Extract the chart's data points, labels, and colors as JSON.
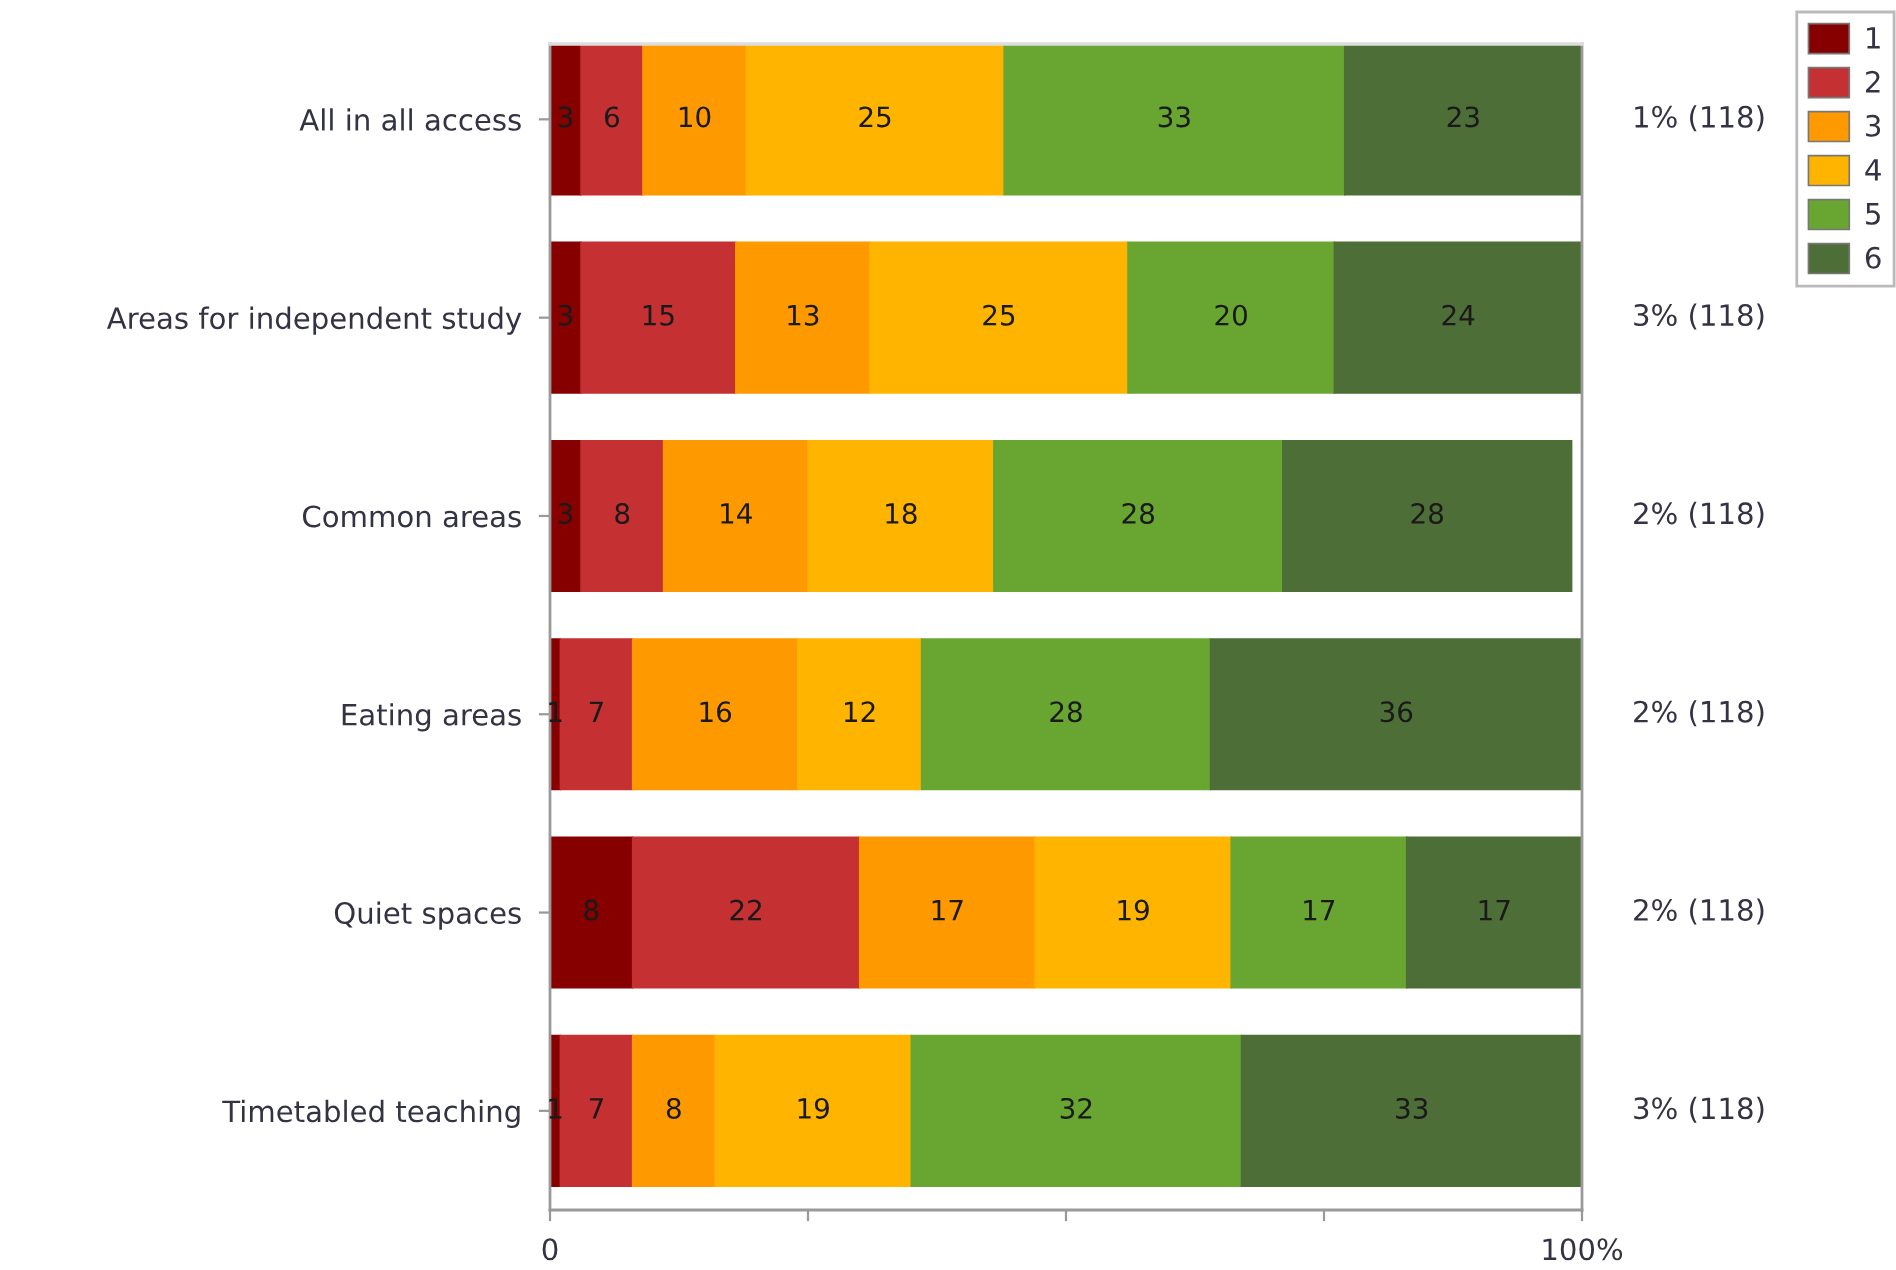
{
  "chart_data": {
    "type": "bar",
    "orientation": "horizontal",
    "stacked": true,
    "categories": [
      "All in all access",
      "Areas for independent study",
      "Common areas",
      "Eating areas",
      "Quiet spaces",
      "Timetabled teaching"
    ],
    "series": [
      {
        "name": "1",
        "color": "#870000",
        "values": [
          3,
          3,
          3,
          1,
          8,
          1
        ]
      },
      {
        "name": "2",
        "color": "#c53033",
        "values": [
          6,
          15,
          8,
          7,
          22,
          7
        ]
      },
      {
        "name": "3",
        "color": "#fe9900",
        "values": [
          10,
          13,
          14,
          16,
          17,
          8
        ]
      },
      {
        "name": "4",
        "color": "#ffb400",
        "values": [
          25,
          25,
          18,
          12,
          19,
          19
        ]
      },
      {
        "name": "5",
        "color": "#69a631",
        "values": [
          33,
          20,
          28,
          28,
          17,
          32
        ]
      },
      {
        "name": "6",
        "color": "#4e6e38",
        "values": [
          23,
          24,
          28,
          36,
          17,
          33
        ]
      }
    ],
    "xlim": [
      0,
      100
    ],
    "xticks": [
      {
        "value": 0,
        "label": "0"
      },
      {
        "value": 25,
        "label": null
      },
      {
        "value": 50,
        "label": null
      },
      {
        "value": 75,
        "label": null
      },
      {
        "value": 100,
        "label": "100%"
      }
    ],
    "data_labels": true,
    "legend": "top right",
    "annotations": [
      "1% (118)",
      "3% (118)",
      "2% (118)",
      "2% (118)",
      "2% (118)",
      "3% (118)"
    ]
  }
}
